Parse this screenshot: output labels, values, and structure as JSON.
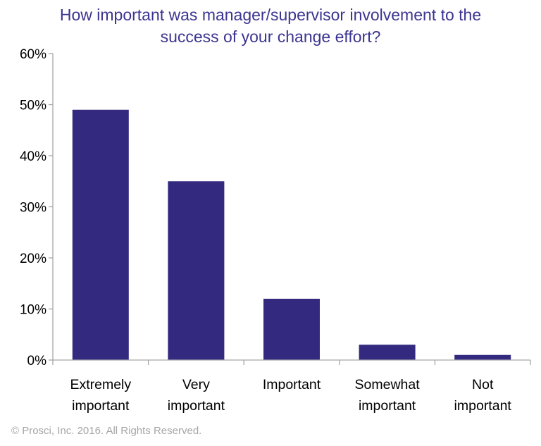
{
  "chart_data": {
    "type": "bar",
    "title": "How important was manager/supervisor involvement to the\nsuccess of your change effort?",
    "categories": [
      [
        "Extremely",
        "important"
      ],
      [
        "Very",
        "important"
      ],
      [
        "Important"
      ],
      [
        "Somewhat",
        "important"
      ],
      [
        "Not",
        "important"
      ]
    ],
    "values": [
      49,
      35,
      12,
      3,
      1
    ],
    "ylim": [
      0,
      60
    ],
    "yticks": [
      0,
      10,
      20,
      30,
      40,
      50,
      60
    ],
    "ytick_labels": [
      "0%",
      "10%",
      "20%",
      "30%",
      "40%",
      "50%",
      "60%"
    ],
    "xlabel": "",
    "ylabel": "",
    "grid": false,
    "bar_color": "#332a80",
    "title_color": "#3b3590",
    "axis_color": "#a6a6a6"
  },
  "footer": {
    "copyright": "© Prosci, Inc. 2016. All Rights Reserved."
  }
}
